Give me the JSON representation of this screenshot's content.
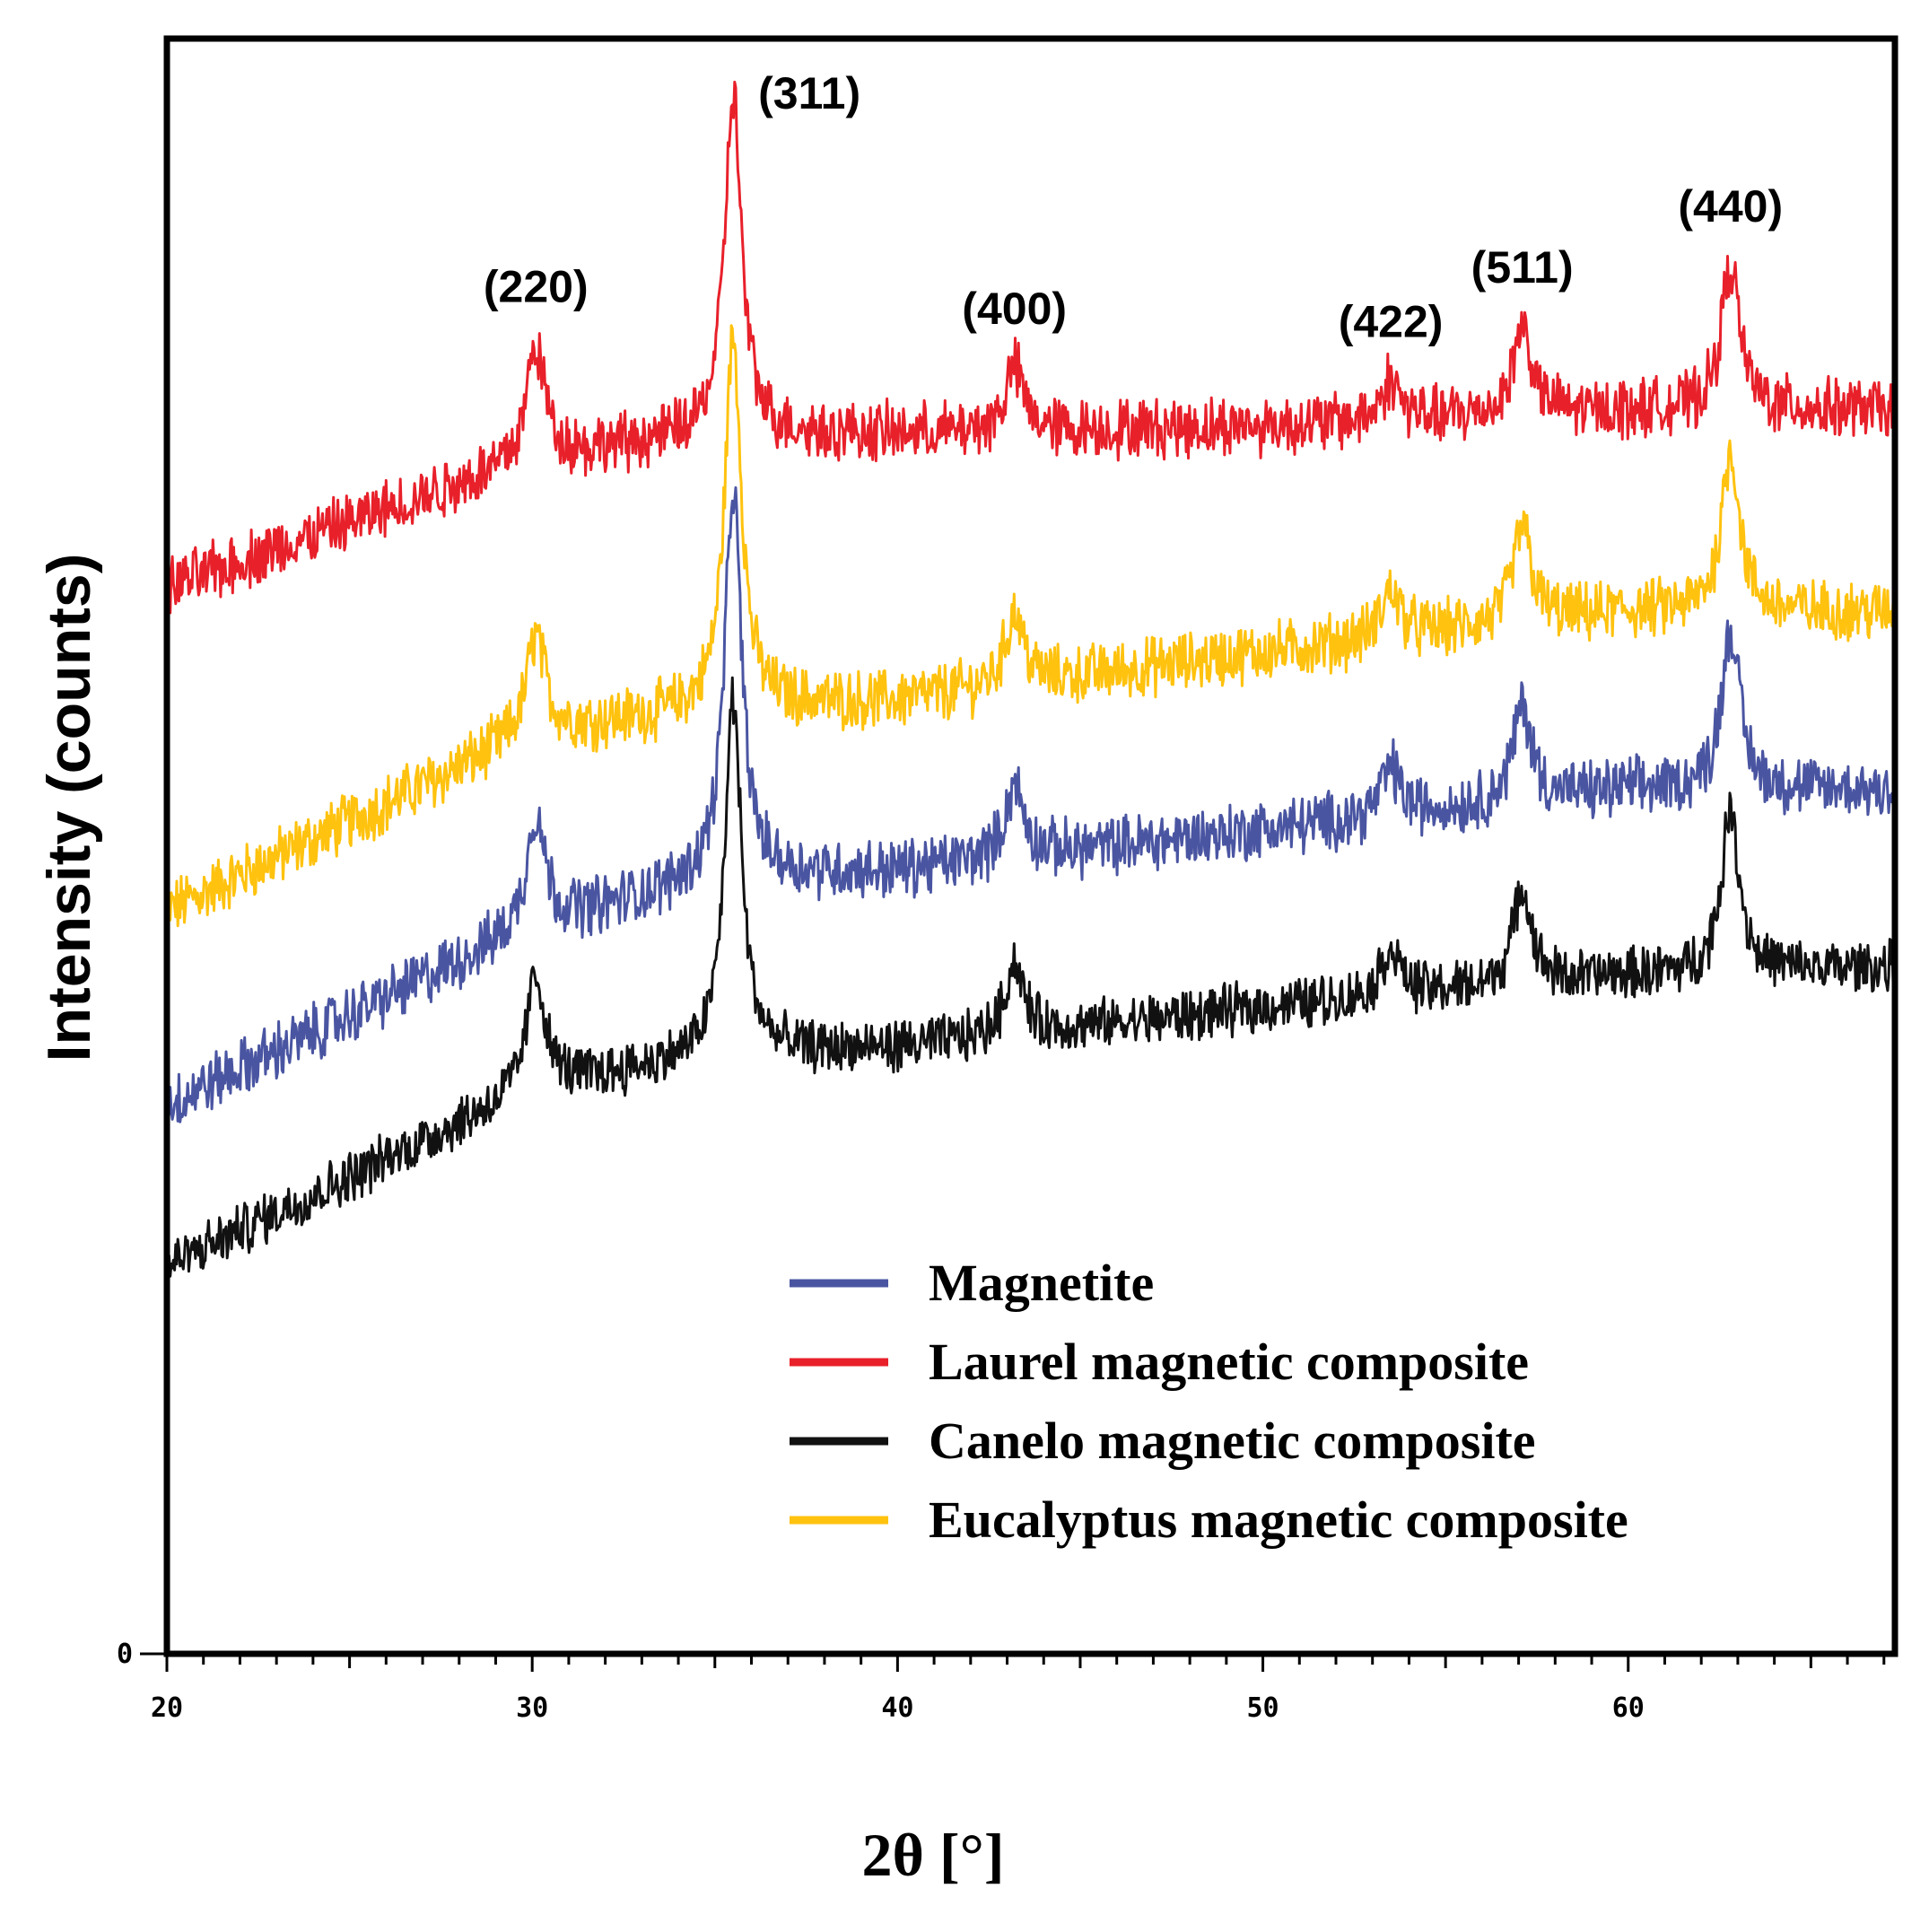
{
  "chart_data": {
    "type": "line",
    "title": "",
    "xlabel": "2θ [°]",
    "ylabel": "Intensity (counts)",
    "xlim": [
      20,
      67.3
    ],
    "ylim": [
      0,
      100
    ],
    "x_ticks": [
      20,
      30,
      40,
      50,
      60
    ],
    "y_ticks": [
      0
    ],
    "grid": false,
    "legend_position": "bottom-right",
    "peaks": [
      {
        "label": "(220)",
        "x": 30.1
      },
      {
        "label": "(311)",
        "x": 35.5
      },
      {
        "label": "(400)",
        "x": 43.2
      },
      {
        "label": "(422)",
        "x": 53.5
      },
      {
        "label": "(511)",
        "x": 57.1
      },
      {
        "label": "(440)",
        "x": 62.8
      }
    ],
    "series": [
      {
        "name": "Magnetite",
        "color": "#4a55a2",
        "baseline": [
          [
            20,
            34
          ],
          [
            30,
            45
          ],
          [
            35,
            48
          ],
          [
            40,
            48.5
          ],
          [
            50,
            51
          ],
          [
            60,
            53.5
          ],
          [
            67.3,
            53.5
          ]
        ],
        "peak_heights": [
          7,
          24,
          4.5,
          3,
          6,
          10
        ],
        "noise": 1.6
      },
      {
        "name": "Laurel magnetic composite",
        "color": "#e8202a",
        "baseline": [
          [
            20,
            66
          ],
          [
            30,
            74
          ],
          [
            35,
            75.5
          ],
          [
            40,
            75.5
          ],
          [
            50,
            76
          ],
          [
            60,
            77
          ],
          [
            67.3,
            77
          ]
        ],
        "peak_heights": [
          7,
          21,
          4,
          2.5,
          5.5,
          9
        ],
        "noise": 1.6
      },
      {
        "name": "Canelo magnetic composite",
        "color": "#111111",
        "baseline": [
          [
            20,
            24
          ],
          [
            30,
            35
          ],
          [
            35,
            37
          ],
          [
            40,
            37.5
          ],
          [
            50,
            40
          ],
          [
            60,
            42
          ],
          [
            67.3,
            42.5
          ]
        ],
        "peak_heights": [
          7,
          22,
          4.5,
          3,
          6,
          10
        ],
        "noise": 1.4
      },
      {
        "name": "Eucalyptus magnetic composite",
        "color": "#ffc20e",
        "baseline": [
          [
            20,
            46
          ],
          [
            30,
            57
          ],
          [
            35,
            58.5
          ],
          [
            40,
            59
          ],
          [
            50,
            62
          ],
          [
            60,
            64.5
          ],
          [
            67.3,
            64.5
          ]
        ],
        "peak_heights": [
          6,
          23,
          4.5,
          3,
          6,
          10
        ],
        "noise": 1.6
      }
    ]
  }
}
